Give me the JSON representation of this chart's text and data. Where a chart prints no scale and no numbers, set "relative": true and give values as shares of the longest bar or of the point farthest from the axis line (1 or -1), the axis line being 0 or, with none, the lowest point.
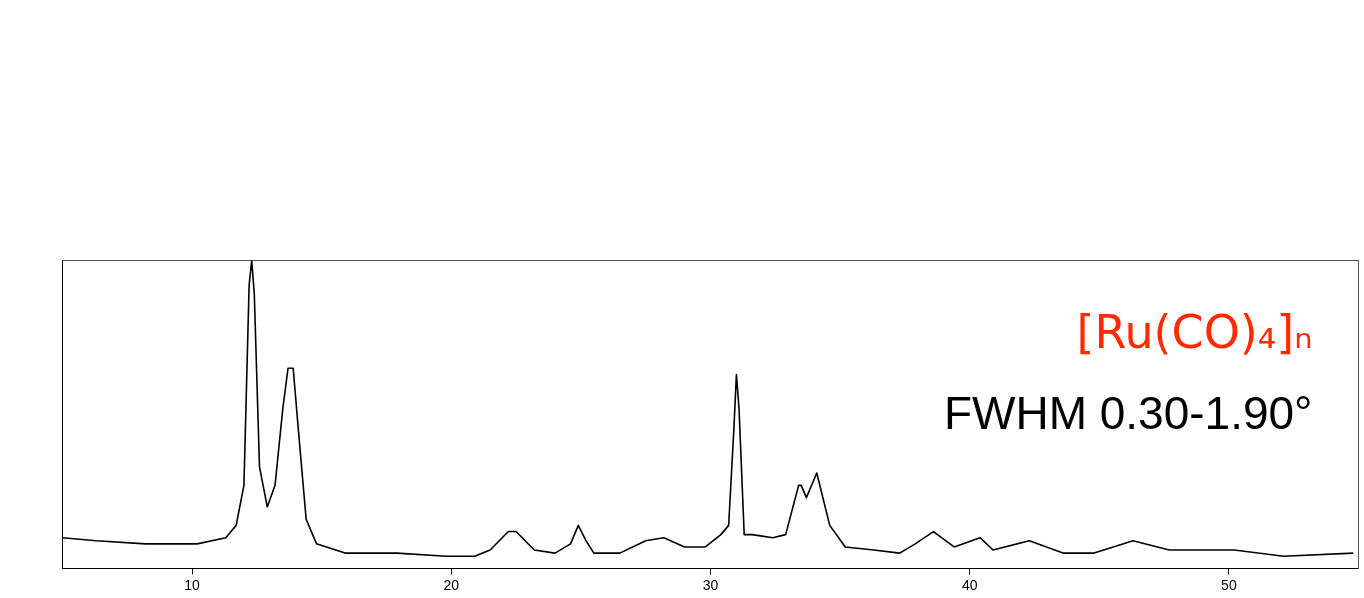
{
  "chart_data": {
    "type": "line",
    "relative": true,
    "xlim": [
      5,
      55
    ],
    "xticks": [
      10,
      20,
      30,
      40,
      50
    ],
    "grid": false,
    "marker": "none",
    "line_style": "solid",
    "annotations": [
      "[Ru(CO)₄]ₙ",
      "FWHM 0.30-1.90°"
    ],
    "series": [
      {
        "color": "#000000",
        "x": [
          5.0,
          6.3,
          8.2,
          10.2,
          11.3,
          11.7,
          12.0,
          12.2,
          12.3,
          12.4,
          12.6,
          12.9,
          13.2,
          13.5,
          13.7,
          13.9,
          14.1,
          14.4,
          14.8,
          15.9,
          17.9,
          19.8,
          20.9,
          21.5,
          22.2,
          22.5,
          23.2,
          24.0,
          24.6,
          24.9,
          25.2,
          25.5,
          26.5,
          27.5,
          28.2,
          29.0,
          29.8,
          30.4,
          30.7,
          30.9,
          31.0,
          31.1,
          31.3,
          31.6,
          32.4,
          32.9,
          33.4,
          33.5,
          33.7,
          34.1,
          34.6,
          35.2,
          36.3,
          37.3,
          37.9,
          38.6,
          39.4,
          40.4,
          40.9,
          42.3,
          43.6,
          44.8,
          46.3,
          47.7,
          50.2,
          52.1,
          54.8
        ],
        "values": [
          0.1,
          0.09,
          0.08,
          0.08,
          0.1,
          0.14,
          0.27,
          0.92,
          1.0,
          0.89,
          0.33,
          0.2,
          0.27,
          0.52,
          0.65,
          0.65,
          0.45,
          0.16,
          0.08,
          0.05,
          0.05,
          0.04,
          0.04,
          0.06,
          0.12,
          0.12,
          0.06,
          0.05,
          0.08,
          0.14,
          0.09,
          0.05,
          0.05,
          0.09,
          0.1,
          0.07,
          0.07,
          0.11,
          0.14,
          0.45,
          0.63,
          0.52,
          0.11,
          0.11,
          0.1,
          0.11,
          0.27,
          0.27,
          0.23,
          0.31,
          0.14,
          0.07,
          0.06,
          0.05,
          0.08,
          0.12,
          0.07,
          0.1,
          0.06,
          0.09,
          0.05,
          0.05,
          0.09,
          0.06,
          0.06,
          0.04,
          0.05
        ]
      }
    ]
  }
}
